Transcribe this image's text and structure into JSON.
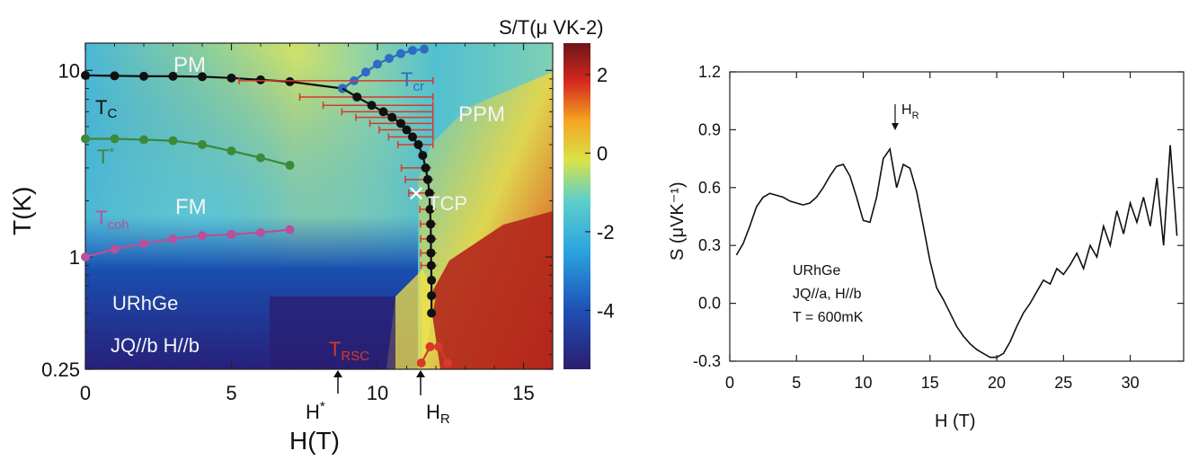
{
  "colors": {
    "cmap": [
      "#2b1e6e",
      "#1f4fb5",
      "#2aa3e0",
      "#5fd0c8",
      "#d8e34a",
      "#f5a623",
      "#d62a1e",
      "#6e1418"
    ],
    "tc": "#111111",
    "tstar": "#3a8a3a",
    "tcoh": "#b8509a",
    "tcr": "#2f6bc4",
    "trsc": "#d63a2a",
    "trace": "#111111",
    "axis": "#222222"
  },
  "chart_data": [
    {
      "type": "heatmap",
      "title": "",
      "xlabel": "H(T)",
      "ylabel": "T(K)",
      "xlim": [
        0,
        16
      ],
      "ylim": [
        0.25,
        14
      ],
      "yscale": "log",
      "xticks": [
        "0",
        "5",
        "10",
        "15"
      ],
      "yticks": [
        "0.25",
        "1",
        "10"
      ],
      "colorbar": {
        "label": "S/T(μ VK-2)",
        "range": [
          -5.5,
          2.8
        ],
        "ticks": [
          "2",
          "0",
          "-2",
          "-4"
        ]
      },
      "region_labels": [
        "PM",
        "PPM",
        "FM"
      ],
      "sample_labels": [
        "URhGe",
        "JQ//b H//b"
      ],
      "markers": [
        "H*",
        "HR",
        "TCP"
      ],
      "series": [
        {
          "name": "TC",
          "x": [
            0,
            1,
            2,
            3,
            4,
            5,
            6,
            7,
            8.8
          ],
          "y": [
            9.4,
            9.35,
            9.3,
            9.3,
            9.25,
            9.1,
            8.9,
            8.7,
            8.0
          ]
        },
        {
          "name": "T*",
          "x": [
            0,
            1,
            2,
            3,
            4,
            5,
            6,
            7
          ],
          "y": [
            4.3,
            4.3,
            4.25,
            4.2,
            4.0,
            3.7,
            3.4,
            3.1
          ]
        },
        {
          "name": "Tcoh",
          "x": [
            0,
            1,
            2,
            3,
            4,
            5,
            6,
            7
          ],
          "y": [
            1.0,
            1.1,
            1.18,
            1.25,
            1.3,
            1.32,
            1.35,
            1.4
          ]
        },
        {
          "name": "Tcr",
          "x": [
            8.8,
            9.2,
            9.6,
            10.0,
            10.4,
            10.8,
            11.2,
            11.6
          ],
          "y": [
            8.0,
            8.8,
            9.8,
            10.8,
            11.6,
            12.3,
            12.8,
            13.0
          ]
        },
        {
          "name": "TRSC",
          "x": [
            11.5,
            11.8,
            12.1,
            12.4
          ],
          "y": [
            0.27,
            0.33,
            0.33,
            0.27
          ]
        }
      ],
      "boundary_points": {
        "x": [
          8.8,
          9.3,
          9.8,
          10.2,
          10.5,
          10.8,
          11.0,
          11.2,
          11.4,
          11.55,
          11.65,
          11.72,
          11.78,
          11.8,
          11.82,
          11.83,
          11.83,
          11.84,
          11.85,
          11.85,
          11.85
        ],
        "y": [
          8.0,
          7.2,
          6.5,
          6.0,
          5.6,
          5.2,
          4.8,
          4.4,
          4.0,
          3.5,
          3.0,
          2.6,
          2.2,
          1.8,
          1.5,
          1.25,
          1.05,
          0.9,
          0.75,
          0.62,
          0.5
        ]
      }
    },
    {
      "type": "line",
      "title": "",
      "xlabel": "H (T)",
      "ylabel": "S (μVK⁻¹)",
      "xlim": [
        0,
        34
      ],
      "ylim": [
        -0.3,
        1.2
      ],
      "xticks": [
        "0",
        "5",
        "10",
        "15",
        "20",
        "25",
        "30"
      ],
      "yticks": [
        "-0.3",
        "0.0",
        "0.3",
        "0.6",
        "0.9",
        "1.2"
      ],
      "annotation": "HR",
      "legend_text": [
        "URhGe",
        "JQ//a, H//b",
        "T = 600mK"
      ],
      "x": [
        0.5,
        1,
        1.5,
        2,
        2.5,
        3,
        3.5,
        4,
        4.5,
        5,
        5.5,
        6,
        6.5,
        7,
        7.5,
        8,
        8.5,
        9,
        9.5,
        10,
        10.5,
        11,
        11.5,
        12,
        12.5,
        13,
        13.5,
        14,
        14.5,
        15,
        15.5,
        16,
        16.5,
        17,
        17.5,
        18,
        18.5,
        19,
        19.5,
        20,
        20.5,
        21,
        21.5,
        22,
        22.5,
        23,
        23.5,
        24,
        24.5,
        25,
        25.5,
        26,
        26.5,
        27,
        27.5,
        28,
        28.5,
        29,
        29.5,
        30,
        30.5,
        31,
        31.5,
        32,
        32.5,
        33,
        33.5
      ],
      "y": [
        0.25,
        0.31,
        0.4,
        0.5,
        0.55,
        0.57,
        0.56,
        0.55,
        0.53,
        0.52,
        0.51,
        0.52,
        0.55,
        0.6,
        0.66,
        0.71,
        0.72,
        0.66,
        0.55,
        0.43,
        0.42,
        0.55,
        0.75,
        0.8,
        0.6,
        0.72,
        0.7,
        0.58,
        0.4,
        0.22,
        0.08,
        0.02,
        -0.05,
        -0.12,
        -0.17,
        -0.21,
        -0.24,
        -0.26,
        -0.28,
        -0.28,
        -0.26,
        -0.2,
        -0.12,
        -0.05,
        0.0,
        0.06,
        0.12,
        0.1,
        0.18,
        0.15,
        0.2,
        0.26,
        0.18,
        0.3,
        0.24,
        0.4,
        0.3,
        0.48,
        0.36,
        0.52,
        0.42,
        0.55,
        0.4,
        0.65,
        0.3,
        0.82,
        0.35
      ]
    }
  ]
}
